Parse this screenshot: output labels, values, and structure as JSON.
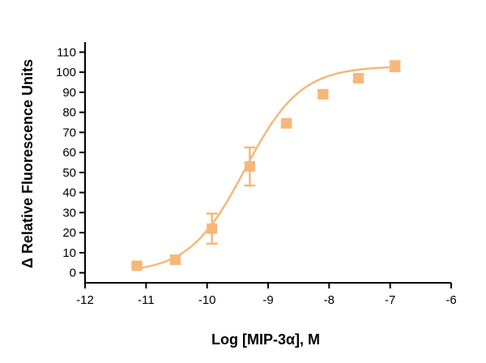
{
  "chart_data": {
    "type": "scatter",
    "title": "",
    "xlabel": "Log [MIP-3α], M",
    "ylabel": "Δ Relative Fluorescence Units",
    "xlim": [
      -12,
      -6
    ],
    "ylim": [
      -5,
      115
    ],
    "xticks": [
      -12,
      -11,
      -10,
      -9,
      -8,
      -7,
      -6
    ],
    "yticks": [
      0,
      10,
      20,
      30,
      40,
      50,
      60,
      70,
      80,
      90,
      100,
      110
    ],
    "grid": false,
    "legend": "none",
    "series": [
      {
        "marker": "square",
        "color": "#F5B87A",
        "x": [
          -11.15,
          -10.52,
          -9.92,
          -9.3,
          -8.7,
          -8.1,
          -7.52,
          -6.92
        ],
        "y": [
          3.5,
          6.5,
          22,
          53,
          74.5,
          89,
          97,
          103
        ],
        "error": [
          1,
          2,
          7.5,
          9.5,
          1.5,
          1.5,
          1.5,
          2.5
        ]
      }
    ],
    "fit": {
      "model": "four-parameter logistic",
      "bottom": 0,
      "top": 103,
      "logEC50": -9.38,
      "hill": 0.95
    }
  }
}
